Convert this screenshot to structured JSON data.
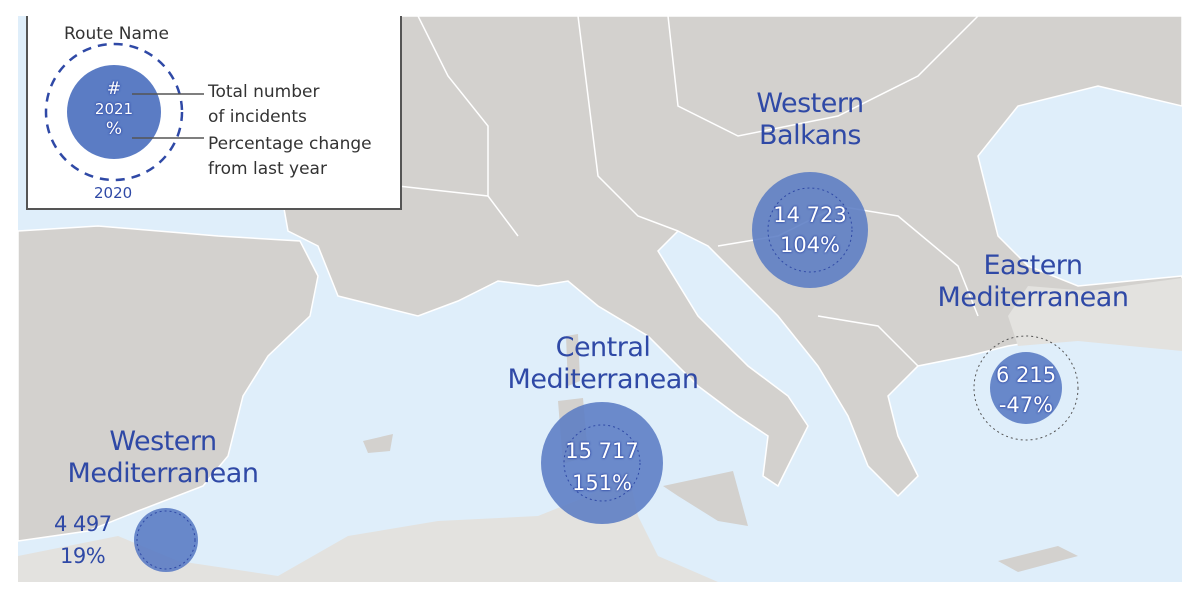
{
  "legend": {
    "title": "Route Name",
    "circle_count_symbol": "#",
    "circle_year": "2021",
    "circle_pct_symbol": "%",
    "outer_year": "2020",
    "total_label": "Total number\nof incidents",
    "pct_label": "Percentage change\nfrom last year"
  },
  "routes": [
    {
      "name": "Western\nBalkans",
      "count": "14 723",
      "change": "104%"
    },
    {
      "name": "Central\nMediterranean",
      "count": "15 717",
      "change": "151%"
    },
    {
      "name": "Eastern\nMediterranean",
      "count": "6 215",
      "change": "-47%"
    },
    {
      "name": "Western\nMediterranean",
      "count": "4 497",
      "change": "19%"
    }
  ],
  "colors": {
    "sea": "#dfeefa",
    "land": "#d3d1ce",
    "non_eu_land": "#e3e2df",
    "bubble": "#5b7cc4",
    "label": "#2f49a6"
  }
}
